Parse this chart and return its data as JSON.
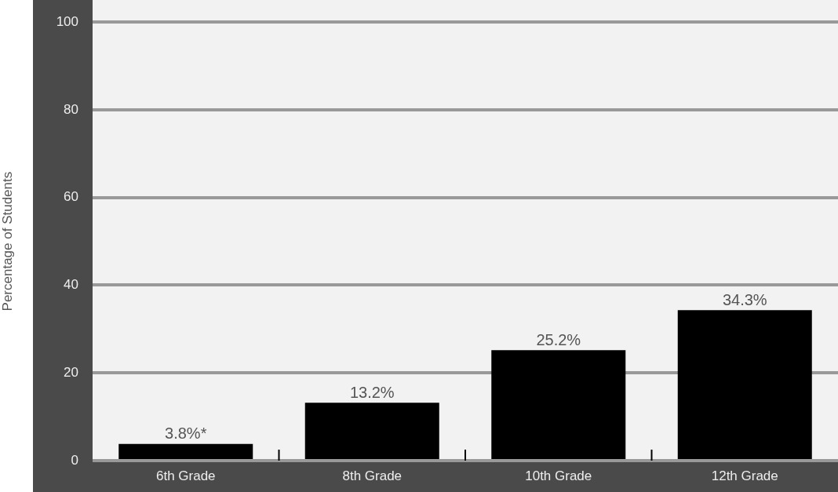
{
  "chart_data": {
    "type": "bar",
    "ylabel": "Percentage of Students",
    "categories": [
      "6th Grade",
      "8th Grade",
      "10th Grade",
      "12th Grade"
    ],
    "values": [
      3.8,
      13.2,
      25.2,
      34.3
    ],
    "value_labels": [
      "3.8%*",
      "13.2%",
      "25.2%",
      "34.3%"
    ],
    "color": "#000000",
    "ylim": [
      0,
      100
    ],
    "yticks": [
      0,
      20,
      40,
      60,
      80,
      100
    ],
    "grid": "y",
    "legend": false
  }
}
